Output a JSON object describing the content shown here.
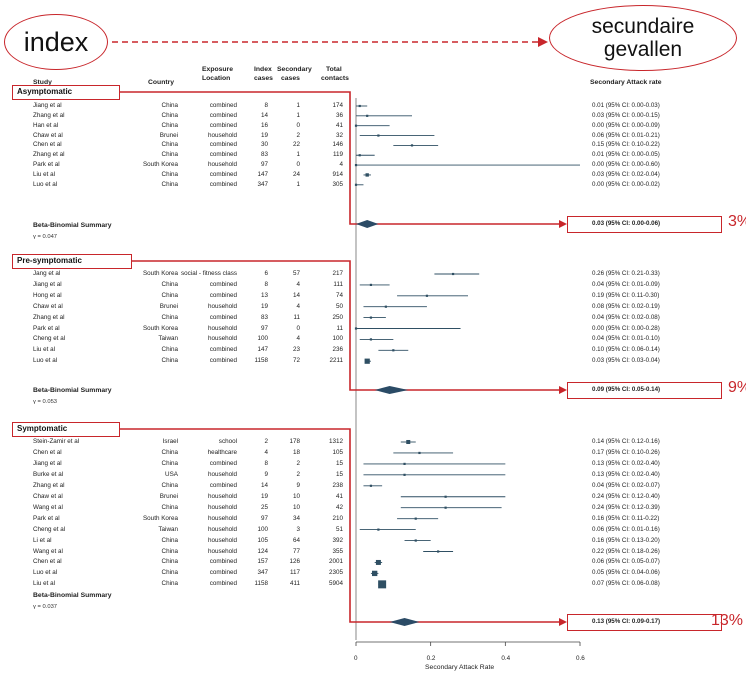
{
  "labels": {
    "index": "index",
    "secondary_line1": "secundaire",
    "secondary_line2": "gevallen"
  },
  "header": {
    "study": "Study",
    "country": "Country",
    "exposure_line1": "Exposure",
    "exposure_line2": "Location",
    "index_line1": "Index",
    "index_line2": "cases",
    "secondary_line1": "Secondary",
    "secondary_line2": "cases",
    "total_line1": "Total",
    "total_line2": "contacts",
    "sar": "Secondary Attack rate"
  },
  "axis": {
    "ticks": [
      "0",
      "0.2",
      "0.4",
      "0.6"
    ],
    "label": "Secondary Attack Rate"
  },
  "colors": {
    "accent": "#c8262b",
    "marker": "#2f4f63",
    "summary": "#2b4b66"
  },
  "chart_data": {
    "type": "forest",
    "x_label": "Secondary Attack Rate",
    "xlim": [
      0,
      0.6
    ],
    "groups": [
      {
        "name": "Asymptomatic",
        "pct": "3%",
        "summary_label": "Beta-Binomial Summary",
        "gamma": "γ = 0.047",
        "summary": {
          "est": 0.03,
          "lo": 0.0,
          "hi": 0.06,
          "text": "0.03 (95% CI: 0.00-0.06)"
        },
        "studies": [
          {
            "study": "Jiang et al",
            "country": "China",
            "exposure": "combined",
            "index": "8",
            "secondary": "1",
            "total": "174",
            "est": 0.01,
            "lo": 0.0,
            "hi": 0.03,
            "ci_text": "0.01 (95% CI: 0.00-0.03)"
          },
          {
            "study": "Zhang et al",
            "country": "China",
            "exposure": "combined",
            "index": "14",
            "secondary": "1",
            "total": "36",
            "est": 0.03,
            "lo": 0.0,
            "hi": 0.15,
            "ci_text": "0.03 (95% CI: 0.00-0.15)"
          },
          {
            "study": "Han et al",
            "country": "China",
            "exposure": "combined",
            "index": "16",
            "secondary": "0",
            "total": "41",
            "est": 0.0,
            "lo": 0.0,
            "hi": 0.09,
            "ci_text": "0.00 (95% CI: 0.00-0.09)"
          },
          {
            "study": "Chaw et al",
            "country": "Brunei",
            "exposure": "household",
            "index": "19",
            "secondary": "2",
            "total": "32",
            "est": 0.06,
            "lo": 0.01,
            "hi": 0.21,
            "ci_text": "0.06 (95% CI: 0.01-0.21)"
          },
          {
            "study": "Chen et al",
            "country": "China",
            "exposure": "combined",
            "index": "30",
            "secondary": "22",
            "total": "146",
            "est": 0.15,
            "lo": 0.1,
            "hi": 0.22,
            "ci_text": "0.15 (95% CI: 0.10-0.22)"
          },
          {
            "study": "Zhang et al",
            "country": "China",
            "exposure": "combined",
            "index": "83",
            "secondary": "1",
            "total": "119",
            "est": 0.01,
            "lo": 0.0,
            "hi": 0.05,
            "ci_text": "0.01 (95% CI: 0.00-0.05)"
          },
          {
            "study": "Park et al",
            "country": "South Korea",
            "exposure": "household",
            "index": "97",
            "secondary": "0",
            "total": "4",
            "est": 0.0,
            "lo": 0.0,
            "hi": 0.6,
            "ci_text": "0.00 (95% CI: 0.00-0.60)"
          },
          {
            "study": "Liu et al",
            "country": "China",
            "exposure": "combined",
            "index": "147",
            "secondary": "24",
            "total": "914",
            "est": 0.03,
            "lo": 0.02,
            "hi": 0.04,
            "ci_text": "0.03 (95% CI: 0.02-0.04)"
          },
          {
            "study": "Luo et al",
            "country": "China",
            "exposure": "combined",
            "index": "347",
            "secondary": "1",
            "total": "305",
            "est": 0.0,
            "lo": 0.0,
            "hi": 0.02,
            "ci_text": "0.00 (95% CI: 0.00-0.02)"
          }
        ]
      },
      {
        "name": "Pre-symptomatic",
        "pct": "9%",
        "summary_label": "Beta-Binomial Summary",
        "gamma": "γ = 0.053",
        "summary": {
          "est": 0.09,
          "lo": 0.05,
          "hi": 0.14,
          "text": "0.09 (95% CI: 0.05-0.14)"
        },
        "studies": [
          {
            "study": "Jang et al",
            "country": "South Korea",
            "exposure": "social - fitness class",
            "index": "6",
            "secondary": "57",
            "total": "217",
            "est": 0.26,
            "lo": 0.21,
            "hi": 0.33,
            "ci_text": "0.26 (95% CI: 0.21-0.33)"
          },
          {
            "study": "Jiang et al",
            "country": "China",
            "exposure": "combined",
            "index": "8",
            "secondary": "4",
            "total": "111",
            "est": 0.04,
            "lo": 0.01,
            "hi": 0.09,
            "ci_text": "0.04 (95% CI: 0.01-0.09)"
          },
          {
            "study": "Hong et al",
            "country": "China",
            "exposure": "combined",
            "index": "13",
            "secondary": "14",
            "total": "74",
            "est": 0.19,
            "lo": 0.11,
            "hi": 0.3,
            "ci_text": "0.19 (95% CI: 0.11-0.30)"
          },
          {
            "study": "Chaw et al",
            "country": "Brunei",
            "exposure": "household",
            "index": "19",
            "secondary": "4",
            "total": "50",
            "est": 0.08,
            "lo": 0.02,
            "hi": 0.19,
            "ci_text": "0.08 (95% CI: 0.02-0.19)"
          },
          {
            "study": "Zhang et al",
            "country": "China",
            "exposure": "combined",
            "index": "83",
            "secondary": "11",
            "total": "250",
            "est": 0.04,
            "lo": 0.02,
            "hi": 0.08,
            "ci_text": "0.04 (95% CI: 0.02-0.08)"
          },
          {
            "study": "Park et al",
            "country": "South Korea",
            "exposure": "household",
            "index": "97",
            "secondary": "0",
            "total": "11",
            "est": 0.0,
            "lo": 0.0,
            "hi": 0.28,
            "ci_text": "0.00 (95% CI: 0.00-0.28)"
          },
          {
            "study": "Cheng et al",
            "country": "Taiwan",
            "exposure": "household",
            "index": "100",
            "secondary": "4",
            "total": "100",
            "est": 0.04,
            "lo": 0.01,
            "hi": 0.1,
            "ci_text": "0.04 (95% CI: 0.01-0.10)"
          },
          {
            "study": "Liu et al",
            "country": "China",
            "exposure": "combined",
            "index": "147",
            "secondary": "23",
            "total": "236",
            "est": 0.1,
            "lo": 0.06,
            "hi": 0.14,
            "ci_text": "0.10 (95% CI: 0.06-0.14)"
          },
          {
            "study": "Luo et al",
            "country": "China",
            "exposure": "combined",
            "index": "1158",
            "secondary": "72",
            "total": "2211",
            "est": 0.03,
            "lo": 0.03,
            "hi": 0.04,
            "ci_text": "0.03 (95% CI: 0.03-0.04)"
          }
        ]
      },
      {
        "name": "Symptomatic",
        "pct": "13%",
        "summary_label": "Beta-Binomial Summary",
        "gamma": "γ = 0.037",
        "summary": {
          "est": 0.13,
          "lo": 0.09,
          "hi": 0.17,
          "text": "0.13 (95% CI: 0.09-0.17)"
        },
        "studies": [
          {
            "study": "Stein-Zamir et al",
            "country": "Israel",
            "exposure": "school",
            "index": "2",
            "secondary": "178",
            "total": "1312",
            "est": 0.14,
            "lo": 0.12,
            "hi": 0.16,
            "ci_text": "0.14 (95% CI: 0.12-0.16)"
          },
          {
            "study": "Chen et al",
            "country": "China",
            "exposure": "healthcare",
            "index": "4",
            "secondary": "18",
            "total": "105",
            "est": 0.17,
            "lo": 0.1,
            "hi": 0.26,
            "ci_text": "0.17 (95% CI: 0.10-0.26)"
          },
          {
            "study": "Jiang et al",
            "country": "China",
            "exposure": "combined",
            "index": "8",
            "secondary": "2",
            "total": "15",
            "est": 0.13,
            "lo": 0.02,
            "hi": 0.4,
            "ci_text": "0.13 (95% CI: 0.02-0.40)"
          },
          {
            "study": "Burke et al",
            "country": "USA",
            "exposure": "household",
            "index": "9",
            "secondary": "2",
            "total": "15",
            "est": 0.13,
            "lo": 0.02,
            "hi": 0.4,
            "ci_text": "0.13 (95% CI: 0.02-0.40)"
          },
          {
            "study": "Zhang et al",
            "country": "China",
            "exposure": "combined",
            "index": "14",
            "secondary": "9",
            "total": "238",
            "est": 0.04,
            "lo": 0.02,
            "hi": 0.07,
            "ci_text": "0.04 (95% CI: 0.02-0.07)"
          },
          {
            "study": "Chaw et al",
            "country": "Brunei",
            "exposure": "household",
            "index": "19",
            "secondary": "10",
            "total": "41",
            "est": 0.24,
            "lo": 0.12,
            "hi": 0.4,
            "ci_text": "0.24 (95% CI: 0.12-0.40)"
          },
          {
            "study": "Wang et al",
            "country": "China",
            "exposure": "household",
            "index": "25",
            "secondary": "10",
            "total": "42",
            "est": 0.24,
            "lo": 0.12,
            "hi": 0.39,
            "ci_text": "0.24 (95% CI: 0.12-0.39)"
          },
          {
            "study": "Park et al",
            "country": "South Korea",
            "exposure": "household",
            "index": "97",
            "secondary": "34",
            "total": "210",
            "est": 0.16,
            "lo": 0.11,
            "hi": 0.22,
            "ci_text": "0.16 (95% CI: 0.11-0.22)"
          },
          {
            "study": "Cheng et al",
            "country": "Taiwan",
            "exposure": "household",
            "index": "100",
            "secondary": "3",
            "total": "51",
            "est": 0.06,
            "lo": 0.01,
            "hi": 0.16,
            "ci_text": "0.06 (95% CI: 0.01-0.16)"
          },
          {
            "study": "Li et al",
            "country": "China",
            "exposure": "household",
            "index": "105",
            "secondary": "64",
            "total": "392",
            "est": 0.16,
            "lo": 0.13,
            "hi": 0.2,
            "ci_text": "0.16 (95% CI: 0.13-0.20)"
          },
          {
            "study": "Wang et al",
            "country": "China",
            "exposure": "household",
            "index": "124",
            "secondary": "77",
            "total": "355",
            "est": 0.22,
            "lo": 0.18,
            "hi": 0.26,
            "ci_text": "0.22 (95% CI: 0.18-0.26)"
          },
          {
            "study": "Chen et al",
            "country": "China",
            "exposure": "combined",
            "index": "157",
            "secondary": "126",
            "total": "2001",
            "est": 0.06,
            "lo": 0.05,
            "hi": 0.07,
            "ci_text": "0.06 (95% CI: 0.05-0.07)"
          },
          {
            "study": "Luo et al",
            "country": "China",
            "exposure": "combined",
            "index": "347",
            "secondary": "117",
            "total": "2305",
            "est": 0.05,
            "lo": 0.04,
            "hi": 0.06,
            "ci_text": "0.05 (95% CI: 0.04-0.06)"
          },
          {
            "study": "Liu et al",
            "country": "China",
            "exposure": "combined",
            "index": "1158",
            "secondary": "411",
            "total": "5904",
            "est": 0.07,
            "lo": 0.06,
            "hi": 0.08,
            "ci_text": "0.07 (95% CI: 0.06-0.08)"
          }
        ]
      }
    ]
  }
}
